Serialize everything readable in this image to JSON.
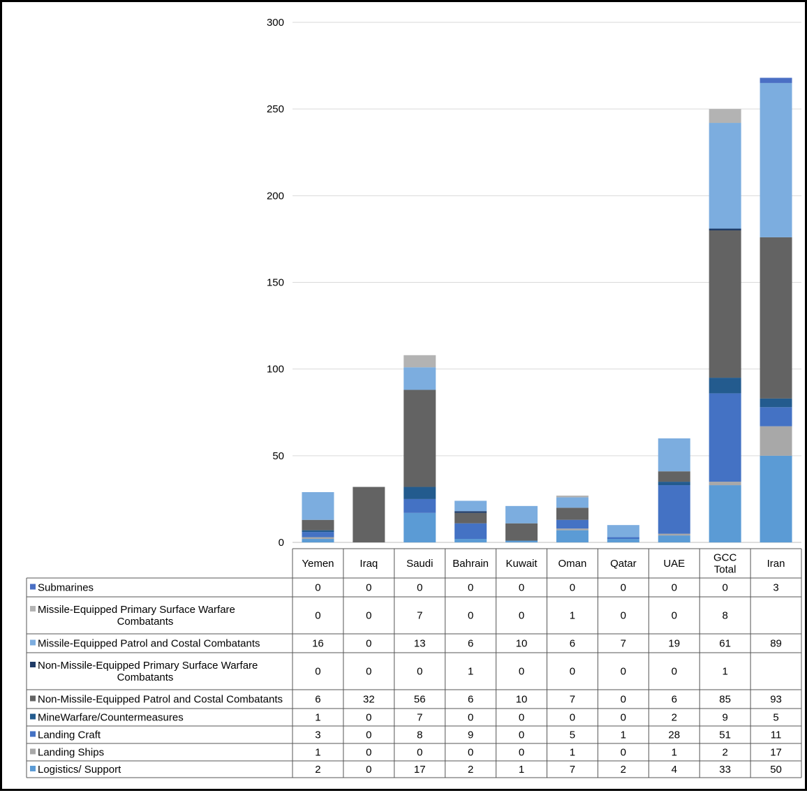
{
  "chart_data": {
    "type": "bar",
    "stacked": true,
    "categories": [
      "Yemen",
      "Iraq",
      "Saudi",
      "Bahrain",
      "Kuwait",
      "Oman",
      "Qatar",
      "UAE",
      "GCC Total",
      "Iran"
    ],
    "category_lines": [
      [
        "Yemen"
      ],
      [
        "Iraq"
      ],
      [
        "Saudi"
      ],
      [
        "Bahrain"
      ],
      [
        "Kuwait"
      ],
      [
        "Oman"
      ],
      [
        "Qatar"
      ],
      [
        "UAE"
      ],
      [
        "GCC",
        "Total"
      ],
      [
        "Iran"
      ]
    ],
    "ylim": [
      0,
      300
    ],
    "yticks": [
      "0",
      "50",
      "100",
      "150",
      "200",
      "250",
      "300"
    ],
    "grid": true,
    "legend": "data-table-rows",
    "series": [
      {
        "name": "Submarines",
        "name_lines": [
          "Submarines"
        ],
        "color": "#4a6fc4",
        "stack_order": 9,
        "values": [
          0,
          0,
          0,
          0,
          0,
          0,
          0,
          0,
          0,
          3
        ],
        "labels": [
          "0",
          "0",
          "0",
          "0",
          "0",
          "0",
          "0",
          "0",
          "0",
          "3"
        ]
      },
      {
        "name": "Missile-Equipped Primary Surface Warfare Combatants",
        "name_lines": [
          "Missile-Equipped Primary Surface Warfare",
          "Combatants"
        ],
        "color": "#b3b3b3",
        "stack_order": 8,
        "values": [
          0,
          0,
          7,
          0,
          0,
          1,
          0,
          0,
          8,
          0
        ],
        "labels": [
          "0",
          "0",
          "7",
          "0",
          "0",
          "1",
          "0",
          "0",
          "8",
          ""
        ]
      },
      {
        "name": "Missile-Equipped Patrol and Costal Combatants",
        "name_lines": [
          "Missile-Equipped Patrol and Costal Combatants"
        ],
        "color": "#7caddf",
        "stack_order": 7,
        "values": [
          16,
          0,
          13,
          6,
          10,
          6,
          7,
          19,
          61,
          89
        ],
        "labels": [
          "16",
          "0",
          "13",
          "6",
          "10",
          "6",
          "7",
          "19",
          "61",
          "89"
        ]
      },
      {
        "name": "Non-Missile-Equipped Primary Surface Warfare Combatants",
        "name_lines": [
          "Non-Missile-Equipped Primary Surface Warfare",
          "Combatants"
        ],
        "color": "#1f3b66",
        "stack_order": 6,
        "values": [
          0,
          0,
          0,
          1,
          0,
          0,
          0,
          0,
          1,
          0
        ],
        "labels": [
          "0",
          "0",
          "0",
          "1",
          "0",
          "0",
          "0",
          "0",
          "1",
          ""
        ]
      },
      {
        "name": "Non-Missile-Equipped Patrol and Costal Combatants",
        "name_lines": [
          "Non-Missile-Equipped Patrol and Costal Combatants"
        ],
        "color": "#636363",
        "stack_order": 5,
        "values": [
          6,
          32,
          56,
          6,
          10,
          7,
          0,
          6,
          85,
          93
        ],
        "labels": [
          "6",
          "32",
          "56",
          "6",
          "10",
          "7",
          "0",
          "6",
          "85",
          "93"
        ]
      },
      {
        "name": "MineWarfare/Countermeasures",
        "name_lines": [
          "MineWarfare/Countermeasures"
        ],
        "color": "#235b8e",
        "stack_order": 4,
        "values": [
          1,
          0,
          7,
          0,
          0,
          0,
          0,
          2,
          9,
          5
        ],
        "labels": [
          "1",
          "0",
          "7",
          "0",
          "0",
          "0",
          "0",
          "2",
          "9",
          "5"
        ]
      },
      {
        "name": "Landing Craft",
        "name_lines": [
          "Landing Craft"
        ],
        "color": "#4472c4",
        "stack_order": 3,
        "values": [
          3,
          0,
          8,
          9,
          0,
          5,
          1,
          28,
          51,
          11
        ],
        "labels": [
          "3",
          "0",
          "8",
          "9",
          "0",
          "5",
          "1",
          "28",
          "51",
          "11"
        ]
      },
      {
        "name": "Landing Ships",
        "name_lines": [
          "Landing Ships"
        ],
        "color": "#a8a8a8",
        "stack_order": 2,
        "values": [
          1,
          0,
          0,
          0,
          0,
          1,
          0,
          1,
          2,
          17
        ],
        "labels": [
          "1",
          "0",
          "0",
          "0",
          "0",
          "1",
          "0",
          "1",
          "2",
          "17"
        ]
      },
      {
        "name": "Logistics/ Support",
        "name_lines": [
          "Logistics/ Support"
        ],
        "color": "#5b9bd5",
        "stack_order": 1,
        "values": [
          2,
          0,
          17,
          2,
          1,
          7,
          2,
          4,
          33,
          50
        ],
        "labels": [
          "2",
          "0",
          "17",
          "2",
          "1",
          "7",
          "2",
          "4",
          "33",
          "50"
        ]
      }
    ]
  }
}
